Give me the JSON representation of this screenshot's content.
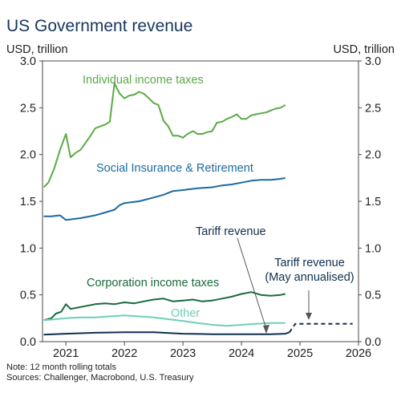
{
  "chart_data": {
    "type": "line",
    "title": "US Government revenue",
    "left_unit_label": "USD, trillion",
    "right_unit_label": "USD, trillion",
    "xlim": [
      2020.6,
      2026.0
    ],
    "ylim": [
      0.0,
      3.0
    ],
    "x_ticks": [
      2021,
      2022,
      2023,
      2024,
      2025,
      2026
    ],
    "x_tick_labels": [
      "2021",
      "2022",
      "2023",
      "2024",
      "2025",
      "2026"
    ],
    "y_ticks": [
      0.0,
      0.5,
      1.0,
      1.5,
      2.0,
      2.5,
      3.0
    ],
    "y_tick_labels": [
      "0.0",
      "0.5",
      "1.0",
      "1.5",
      "2.0",
      "2.5",
      "3.0"
    ],
    "grid": false,
    "legend": "direct labels",
    "series": [
      {
        "name": "Individual income taxes",
        "color": "#5aaa46",
        "x": [
          2020.62,
          2020.7,
          2020.8,
          2020.9,
          2021.0,
          2021.08,
          2021.17,
          2021.25,
          2021.33,
          2021.42,
          2021.5,
          2021.58,
          2021.67,
          2021.75,
          2021.83,
          2021.92,
          2022.0,
          2022.08,
          2022.17,
          2022.25,
          2022.33,
          2022.42,
          2022.5,
          2022.58,
          2022.67,
          2022.75,
          2022.83,
          2022.92,
          2023.0,
          2023.08,
          2023.17,
          2023.25,
          2023.33,
          2023.42,
          2023.5,
          2023.58,
          2023.67,
          2023.75,
          2023.83,
          2023.92,
          2024.0,
          2024.08,
          2024.17,
          2024.25,
          2024.33,
          2024.42,
          2024.5,
          2024.58,
          2024.67,
          2024.75
        ],
        "values": [
          1.65,
          1.7,
          1.85,
          2.05,
          2.22,
          1.97,
          2.02,
          2.05,
          2.12,
          2.2,
          2.28,
          2.3,
          2.32,
          2.35,
          2.76,
          2.65,
          2.6,
          2.63,
          2.64,
          2.67,
          2.65,
          2.6,
          2.55,
          2.53,
          2.36,
          2.3,
          2.2,
          2.2,
          2.18,
          2.22,
          2.25,
          2.22,
          2.22,
          2.24,
          2.25,
          2.34,
          2.35,
          2.38,
          2.4,
          2.43,
          2.38,
          2.38,
          2.42,
          2.43,
          2.44,
          2.45,
          2.47,
          2.49,
          2.5,
          2.53
        ]
      },
      {
        "name": "Social Insurance & Retirement",
        "color": "#1a6aa0",
        "x": [
          2020.62,
          2020.75,
          2020.9,
          2021.0,
          2021.25,
          2021.5,
          2021.67,
          2021.83,
          2021.92,
          2022.0,
          2022.25,
          2022.5,
          2022.67,
          2022.83,
          2023.0,
          2023.25,
          2023.5,
          2023.67,
          2023.83,
          2024.0,
          2024.17,
          2024.33,
          2024.5,
          2024.67,
          2024.75
        ],
        "values": [
          1.34,
          1.34,
          1.35,
          1.3,
          1.32,
          1.35,
          1.38,
          1.41,
          1.46,
          1.48,
          1.5,
          1.54,
          1.57,
          1.61,
          1.62,
          1.64,
          1.65,
          1.67,
          1.68,
          1.7,
          1.72,
          1.73,
          1.73,
          1.74,
          1.75
        ]
      },
      {
        "name": "Corporation income taxes",
        "color": "#1a6a3c",
        "x": [
          2020.62,
          2020.75,
          2020.83,
          2020.92,
          2021.0,
          2021.08,
          2021.17,
          2021.33,
          2021.5,
          2021.67,
          2021.83,
          2022.0,
          2022.17,
          2022.33,
          2022.5,
          2022.67,
          2022.83,
          2023.0,
          2023.17,
          2023.33,
          2023.5,
          2023.67,
          2023.83,
          2024.0,
          2024.17,
          2024.33,
          2024.5,
          2024.67,
          2024.75
        ],
        "values": [
          0.23,
          0.25,
          0.3,
          0.32,
          0.4,
          0.35,
          0.36,
          0.38,
          0.4,
          0.41,
          0.4,
          0.42,
          0.41,
          0.43,
          0.45,
          0.46,
          0.43,
          0.44,
          0.45,
          0.43,
          0.44,
          0.46,
          0.48,
          0.51,
          0.53,
          0.5,
          0.49,
          0.5,
          0.51
        ]
      },
      {
        "name": "Other",
        "color": "#6fcfb3",
        "x": [
          2020.62,
          2020.83,
          2021.0,
          2021.25,
          2021.5,
          2021.75,
          2022.0,
          2022.25,
          2022.5,
          2022.75,
          2023.0,
          2023.25,
          2023.5,
          2023.75,
          2024.0,
          2024.25,
          2024.5,
          2024.75
        ],
        "values": [
          0.23,
          0.24,
          0.25,
          0.26,
          0.26,
          0.27,
          0.28,
          0.27,
          0.26,
          0.24,
          0.22,
          0.2,
          0.18,
          0.17,
          0.18,
          0.19,
          0.2,
          0.2
        ]
      },
      {
        "name": "Tariff revenue",
        "color": "#0f2f4f",
        "x": [
          2020.62,
          2021.0,
          2021.5,
          2022.0,
          2022.5,
          2023.0,
          2023.5,
          2024.0,
          2024.5,
          2024.75,
          2024.82
        ],
        "values": [
          0.075,
          0.085,
          0.095,
          0.1,
          0.1,
          0.085,
          0.08,
          0.08,
          0.08,
          0.085,
          0.1
        ]
      },
      {
        "name": "Tariff revenue (May annualised)",
        "color": "#0f2f4f",
        "style": "dashed",
        "x": [
          2024.82,
          2024.92,
          2025.9
        ],
        "values": [
          0.1,
          0.19,
          0.19
        ]
      }
    ],
    "annotations": [
      {
        "text": "Individual income taxes",
        "color": "#5aaa46"
      },
      {
        "text": "Social Insurance & Retirement",
        "color": "#1a6aa0"
      },
      {
        "text": "Tariff revenue",
        "color": "#0f2f4f"
      },
      {
        "text": "Tariff revenue",
        "color": "#0f2f4f"
      },
      {
        "text": "(May annualised)",
        "color": "#0f2f4f"
      },
      {
        "text": "Corporation income taxes",
        "color": "#1a6a3c"
      },
      {
        "text": "Other",
        "color": "#6fcfb3"
      }
    ]
  },
  "footnote": "Note: 12 month rolling totals",
  "sources": "Sources: Challenger, Macrobond, U.S. Treasury"
}
